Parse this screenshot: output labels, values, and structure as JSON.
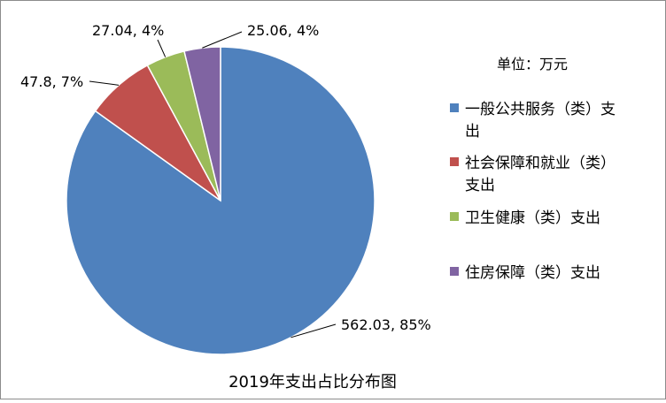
{
  "chart_data": {
    "type": "pie",
    "title": "2019年支出占比分布图",
    "unit_label": "单位：万元",
    "legend_position": "right",
    "slices": [
      {
        "label": "一般公共服务（类）支出",
        "value": 562.03,
        "percent_label": "562.03, 85%",
        "color": "#4f81bd"
      },
      {
        "label": "社会保障和就业（类）支出",
        "value": 47.8,
        "percent_label": "47.8, 7%",
        "color": "#c0504d"
      },
      {
        "label": "卫生健康（类）支出",
        "value": 27.04,
        "percent_label": "27.04, 4%",
        "color": "#9bbb59"
      },
      {
        "label": "住房保障（类）支出",
        "value": 25.06,
        "percent_label": "25.06, 4%",
        "color": "#8064a2"
      }
    ]
  }
}
